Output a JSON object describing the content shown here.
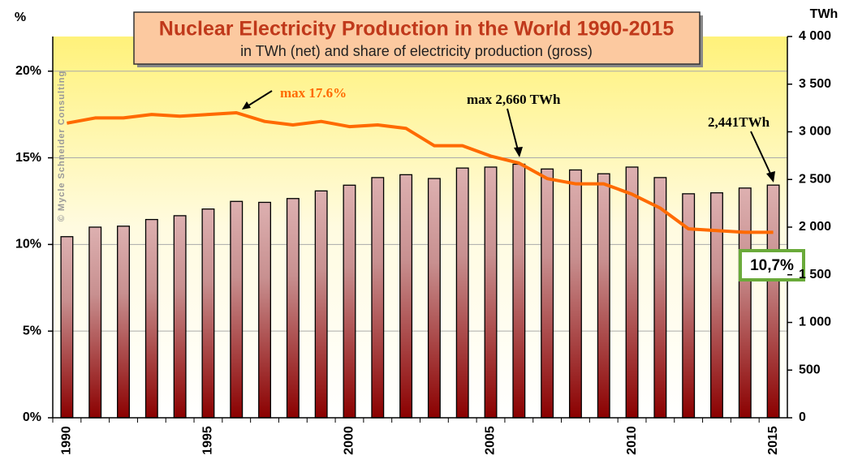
{
  "chart_data": {
    "type": "bar",
    "title": "Nuclear Electricity Production in the World 1990-2015",
    "subtitle": "in TWh (net) and share of electricity production (gross)",
    "ylabel": "%",
    "y2label": "TWh",
    "watermark": "© Mycle Schneider Consulting",
    "categories": [
      "1990",
      null,
      null,
      null,
      null,
      "1995",
      null,
      null,
      null,
      null,
      "2000",
      null,
      null,
      null,
      null,
      "2005",
      null,
      null,
      null,
      null,
      "2010",
      null,
      null,
      null,
      null,
      "2015"
    ],
    "series": [
      {
        "type": "bar",
        "axis": "y2",
        "color": "#8b0000",
        "values": [
          1900,
          2000,
          2010,
          2080,
          2120,
          2190,
          2270,
          2260,
          2300,
          2380,
          2440,
          2520,
          2550,
          2510,
          2620,
          2630,
          2660,
          2610,
          2600,
          2560,
          2630,
          2520,
          2350,
          2360,
          2410,
          2441
        ]
      },
      {
        "type": "line",
        "color": "#ff6a00",
        "values": [
          17.0,
          17.3,
          17.3,
          17.5,
          17.4,
          17.5,
          17.6,
          17.1,
          16.9,
          17.1,
          16.8,
          16.9,
          16.7,
          15.7,
          15.7,
          15.1,
          14.7,
          13.8,
          13.5,
          13.5,
          12.9,
          12.1,
          10.9,
          10.8,
          10.7,
          10.7
        ]
      }
    ],
    "ylim": [
      0,
      22
    ],
    "yticks": [
      {
        "value": 0,
        "label": "0%"
      },
      {
        "value": 5,
        "label": "5%"
      },
      {
        "value": 10,
        "label": "10%"
      },
      {
        "value": 15,
        "label": "15%"
      },
      {
        "value": 20,
        "label": "20%"
      }
    ],
    "y2lim": [
      0,
      4000
    ],
    "y2ticks": [
      0,
      500,
      {
        "value": 1000,
        "label": "1 000"
      },
      {
        "value": 1500,
        "label": "1 500"
      },
      {
        "value": 2000,
        "label": "2 000"
      },
      {
        "value": 2500,
        "label": "2 500"
      },
      {
        "value": 3000,
        "label": "3 000"
      },
      {
        "value": 3500,
        "label": "3 500"
      },
      {
        "value": 4000,
        "label": "4 000"
      }
    ],
    "grid": true,
    "annotations": [
      "max 17.6%",
      "max 2,660 TWh",
      "2,441TWh",
      "10,7%"
    ]
  }
}
